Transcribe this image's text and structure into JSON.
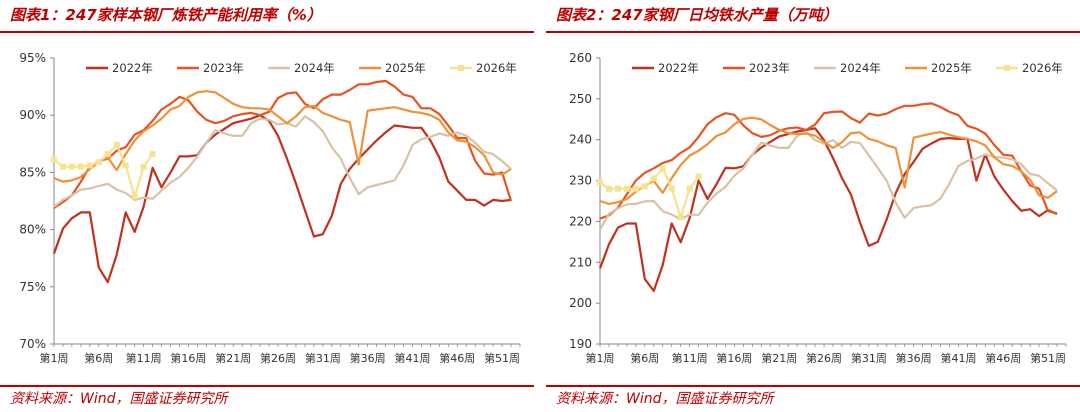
{
  "charts": [
    {
      "title": "图表1：247家样本钢厂炼铁产能利用率（%）",
      "source": "资料来源：Wind，国盛证券研究所",
      "chart_data": {
        "type": "line",
        "title": "247家样本钢厂炼铁产能利用率（%）",
        "xlabel": "",
        "ylabel": "",
        "ylim": [
          70,
          95
        ],
        "y_ticks": [
          70,
          75,
          80,
          85,
          90,
          95
        ],
        "y_tick_labels": [
          "70%",
          "75%",
          "80%",
          "85%",
          "90%",
          "95%"
        ],
        "x_tick_labels": [
          "第1周",
          "第6周",
          "第11周",
          "第16周",
          "第21周",
          "第26周",
          "第31周",
          "第36周",
          "第41周",
          "第46周",
          "第51周"
        ],
        "x_ticks": [
          1,
          6,
          11,
          16,
          21,
          26,
          31,
          36,
          41,
          46,
          51
        ],
        "xlim": [
          1,
          53
        ],
        "legend": "top",
        "grid": false,
        "series": [
          {
            "name": "2022年",
            "color": "#c0311f",
            "marker": false,
            "values": [
              77.9,
              80.1,
              81.0,
              81.5,
              81.5,
              76.7,
              75.4,
              77.8,
              81.5,
              79.8,
              82.0,
              85.4,
              83.7,
              85.0,
              86.4,
              86.4,
              86.5,
              87.6,
              88.3,
              88.8,
              89.3,
              89.5,
              89.7,
              90.0,
              89.5,
              88.2,
              86.2,
              84.0,
              81.7,
              79.4,
              79.6,
              81.2,
              84.0,
              85.3,
              86.2,
              87.0,
              87.8,
              88.5,
              89.1,
              89.0,
              88.9,
              88.9,
              87.8,
              86.3,
              84.2,
              83.4,
              82.6,
              82.6,
              82.1,
              82.6,
              82.5,
              82.6
            ]
          },
          {
            "name": "2023年",
            "color": "#e8531f",
            "marker": false,
            "values": [
              81.9,
              82.4,
              83.0,
              84.2,
              85.5,
              86.0,
              86.2,
              86.9,
              87.2,
              88.3,
              88.7,
              89.5,
              90.5,
              91.0,
              91.6,
              91.3,
              90.3,
              89.6,
              89.3,
              89.5,
              89.9,
              90.1,
              90.2,
              90.0,
              90.3,
              91.5,
              91.9,
              92.0,
              91.0,
              90.6,
              91.4,
              91.8,
              91.8,
              92.2,
              92.7,
              92.7,
              92.9,
              93.0,
              92.5,
              91.8,
              91.6,
              90.6,
              90.6,
              90.1,
              89.1,
              88.0,
              88.0,
              86.0,
              84.9,
              84.8,
              85.0,
              82.5
            ]
          },
          {
            "name": "2024年",
            "color": "#d8c3a5",
            "marker": false,
            "values": [
              82.0,
              82.6,
              83.0,
              83.5,
              83.6,
              83.8,
              84.0,
              83.5,
              83.2,
              82.6,
              82.8,
              82.7,
              83.4,
              84.1,
              84.6,
              85.4,
              86.4,
              87.6,
              88.7,
              88.4,
              88.2,
              88.2,
              89.3,
              89.7,
              89.6,
              89.2,
              89.3,
              89.0,
              89.9,
              89.4,
              88.6,
              87.2,
              86.2,
              84.5,
              83.1,
              83.7,
              83.9,
              84.1,
              84.3,
              85.6,
              87.4,
              87.9,
              88.1,
              88.4,
              88.2,
              88.5,
              88.2,
              87.6,
              86.8,
              86.6,
              86.0,
              85.3
            ]
          },
          {
            "name": "2025年",
            "color": "#f0913a",
            "marker": false,
            "values": [
              84.5,
              84.2,
              84.3,
              84.6,
              85.3,
              85.9,
              86.3,
              85.2,
              86.6,
              87.8,
              88.6,
              89.1,
              89.7,
              90.5,
              90.8,
              91.6,
              92.0,
              92.1,
              92.0,
              91.5,
              91.0,
              90.7,
              90.6,
              90.6,
              90.5,
              89.9,
              89.3,
              89.9,
              90.7,
              90.8,
              90.2,
              89.9,
              89.6,
              89.4,
              85.7,
              90.4,
              90.5,
              90.6,
              90.7,
              90.5,
              90.3,
              90.2,
              90.0,
              89.6,
              88.5,
              87.8,
              87.7,
              87.2,
              86.5,
              85.0,
              84.8,
              85.3
            ]
          },
          {
            "name": "2026年",
            "color": "#f5e38f",
            "marker": true,
            "values": [
              86.1,
              85.5,
              85.5,
              85.5,
              85.6,
              85.9,
              86.6,
              87.4,
              85.6,
              82.9,
              85.5,
              86.6
            ]
          }
        ]
      }
    },
    {
      "title": "图表2：247家钢厂日均铁水产量（万吨）",
      "source": "资料来源：Wind，国盛证券研究所",
      "chart_data": {
        "type": "line",
        "title": "247家钢厂日均铁水产量（万吨）",
        "xlabel": "",
        "ylabel": "",
        "ylim": [
          190,
          260
        ],
        "y_ticks": [
          190,
          200,
          210,
          220,
          230,
          240,
          250,
          260
        ],
        "y_tick_labels": [
          "190",
          "200",
          "210",
          "220",
          "230",
          "240",
          "250",
          "260"
        ],
        "x_tick_labels": [
          "第1周",
          "第6周",
          "第11周",
          "第16周",
          "第21周",
          "第26周",
          "第31周",
          "第36周",
          "第41周",
          "第46周",
          "第51周"
        ],
        "x_ticks": [
          1,
          6,
          11,
          16,
          21,
          26,
          31,
          36,
          41,
          46,
          51
        ],
        "xlim": [
          1,
          53
        ],
        "legend": "top",
        "grid": false,
        "series": [
          {
            "name": "2022年",
            "color": "#c0311f",
            "marker": false,
            "values": [
              208.5,
              214.4,
              218.5,
              219.5,
              219.5,
              205.9,
              203.0,
              209.3,
              219.5,
              214.9,
              220.8,
              230.0,
              225.5,
              229.1,
              233.1,
              233.0,
              233.5,
              236.3,
              238.1,
              239.5,
              240.8,
              241.4,
              242.0,
              242.4,
              242.8,
              239.9,
              235.5,
              230.6,
              226.6,
              219.8,
              214.0,
              215.0,
              220.6,
              226.9,
              231.6,
              234.6,
              237.8,
              239.1,
              240.2,
              240.4,
              240.2,
              240.2,
              230.0,
              236.4,
              231.0,
              227.8,
              225.0,
              222.6,
              223.0,
              221.3,
              222.8,
              221.8
            ]
          },
          {
            "name": "2023年",
            "color": "#e8531f",
            "marker": false,
            "values": [
              220.7,
              221.5,
              223.3,
              226.7,
              230.0,
              231.9,
              233.0,
              234.3,
              235.0,
              236.8,
              238.1,
              240.7,
              243.8,
              245.5,
              246.5,
              246.1,
              243.5,
              241.6,
              240.7,
              241.1,
              242.2,
              242.8,
              243.0,
              242.4,
              243.7,
              246.5,
              246.8,
              246.9,
              245.3,
              244.2,
              246.4,
              245.9,
              246.4,
              247.5,
              248.3,
              248.3,
              248.7,
              248.9,
              248.0,
              246.8,
              246.0,
              243.4,
              242.7,
              241.5,
              238.7,
              236.3,
              236.1,
              232.3,
              228.8,
              228.0,
              222.5,
              222.0
            ]
          },
          {
            "name": "2024年",
            "color": "#d8c3a5",
            "marker": false,
            "values": [
              218.0,
              221.9,
              223.2,
              224.2,
              224.3,
              224.9,
              225.0,
              222.5,
              221.7,
              220.5,
              221.7,
              221.6,
              224.6,
              226.8,
              228.5,
              231.2,
              233.0,
              236.3,
              239.3,
              238.6,
              238.0,
              238.0,
              240.9,
              241.9,
              239.9,
              239.0,
              239.9,
              238.0,
              239.5,
              239.2,
              236.2,
              233.1,
              229.9,
              224.6,
              220.9,
              223.3,
              223.7,
              224.0,
              225.6,
              229.3,
              233.6,
              234.8,
              235.4,
              236.4,
              235.8,
              235.6,
              235.2,
              234.0,
              231.6,
              231.2,
              229.3,
              227.6
            ]
          },
          {
            "name": "2025年",
            "color": "#f0913a",
            "marker": false,
            "values": [
              225.0,
              224.3,
              224.7,
              225.5,
              227.3,
              228.8,
              229.9,
              227.0,
              230.6,
              233.8,
              236.1,
              237.3,
              238.9,
              240.9,
              241.8,
              243.8,
              245.1,
              245.4,
              245.0,
              243.6,
              242.4,
              241.6,
              241.4,
              241.5,
              241.0,
              239.5,
              238.0,
              239.4,
              241.6,
              241.8,
              240.2,
              239.6,
              238.6,
              238.0,
              228.3,
              240.5,
              241.0,
              241.5,
              241.9,
              241.2,
              240.6,
              240.2,
              239.6,
              238.6,
              235.7,
              234.0,
              233.6,
              232.3,
              230.2,
              226.4,
              225.8,
              227.4
            ]
          },
          {
            "name": "2026年",
            "color": "#f5e38f",
            "marker": true,
            "values": [
              229.5,
              228.0,
              228.0,
              228.0,
              228.0,
              228.6,
              230.5,
              232.9,
              228.1,
              221.0,
              228.0,
              231.0
            ]
          }
        ]
      }
    }
  ]
}
